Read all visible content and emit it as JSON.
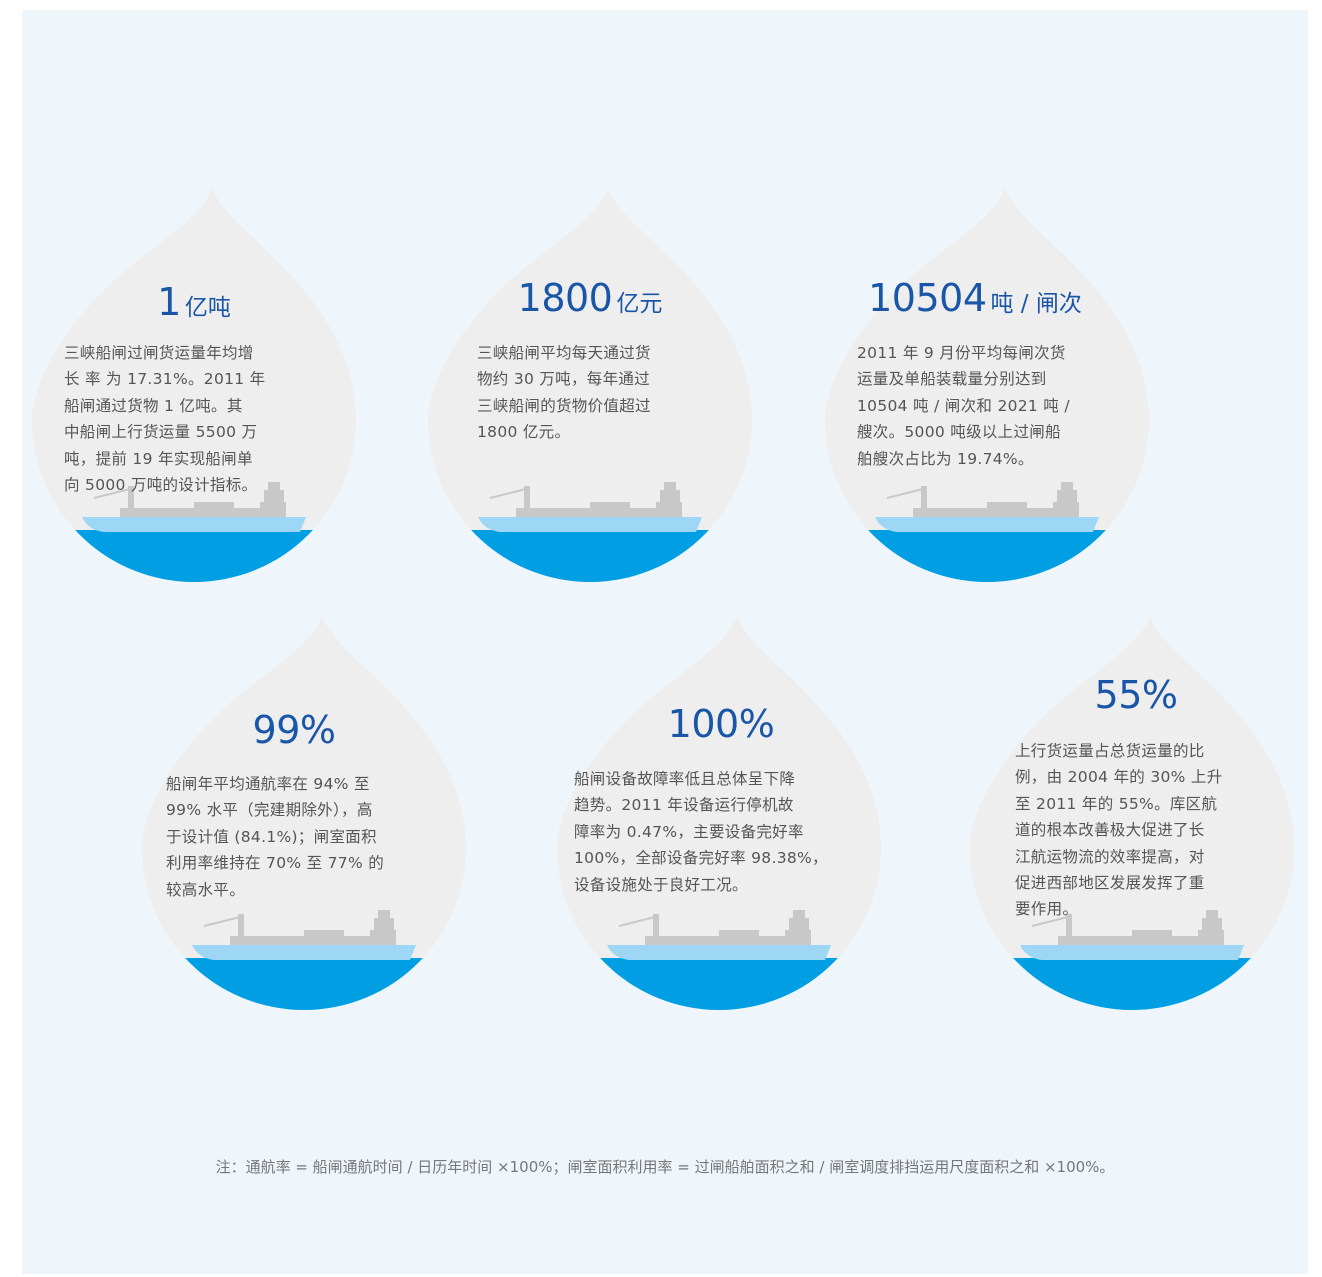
{
  "colors": {
    "panel": "#eef6fc",
    "drop": "#eeeeee",
    "water": "#009fe3",
    "hull": "#9dd7f5",
    "ship_grey": "#c8c8c8",
    "stat": "#1a56a8",
    "text": "#555555"
  },
  "drops": [
    {
      "value": "1",
      "unit": "亿吨",
      "text": "三峡船闸过闸货运量年均增长率为17.31%。2011年船闸通过货物1亿吨。其中船闸上行货运量5500万吨，提前19年实现船闸单向5000万吨的设计指标。",
      "lines": [
        "三峡船闸过闸货运量年均增",
        "长 率 为 17.31%。2011 年",
        "船闸通过货物 1 亿吨。其",
        "中船闸上行货运量 5500 万",
        "吨，提前 19 年实现船闸单",
        "向 5000 万吨的设计指标。"
      ],
      "icon": "cargo-ship-icon"
    },
    {
      "value": "1800",
      "unit": "亿元",
      "lines": [
        "三峡船闸平均每天通过货",
        "物约 30 万吨，每年通过",
        "三峡船闸的货物价值超过",
        "1800 亿元。"
      ],
      "icon": "cargo-ship-icon"
    },
    {
      "value": "10504",
      "unit": "吨 / 闸次",
      "lines": [
        "2011 年 9 月份平均每闸次货",
        "运量及单船装载量分别达到",
        "10504 吨 / 闸次和 2021 吨 /",
        "艘次。5000 吨级以上过闸船",
        "舶艘次占比为 19.74%。"
      ],
      "icon": "cargo-ship-icon"
    },
    {
      "value": "99%",
      "unit": "",
      "lines": [
        "船闸年平均通航率在 94% 至",
        "99% 水平（完建期除外），高",
        "于设计值 (84.1%)；闸室面积",
        "利用率维持在 70% 至 77% 的",
        "较高水平。"
      ],
      "icon": "cargo-ship-icon"
    },
    {
      "value": "100%",
      "unit": "",
      "lines": [
        "船闸设备故障率低且总体呈下降",
        "趋势。2011 年设备运行停机故",
        "障率为 0.47%，主要设备完好率",
        "100%，全部设备完好率 98.38%，",
        "设备设施处于良好工况。"
      ],
      "icon": "cargo-ship-icon"
    },
    {
      "value": "55%",
      "unit": "",
      "lines": [
        "上行货运量占总货运量的比",
        "例，由 2004 年的 30% 上升",
        "至 2011 年的 55%。库区航",
        "道的根本改善极大促进了长",
        "江航运物流的效率提高，对",
        "促进西部地区发展发挥了重",
        "要作用。"
      ],
      "icon": "cargo-ship-icon"
    }
  ],
  "note": "注：通航率 = 船闸通航时间 / 日历年时间 ×100%；闸室面积利用率 = 过闸船舶面积之和 / 闸室调度排挡运用尺度面积之和 ×100%。"
}
